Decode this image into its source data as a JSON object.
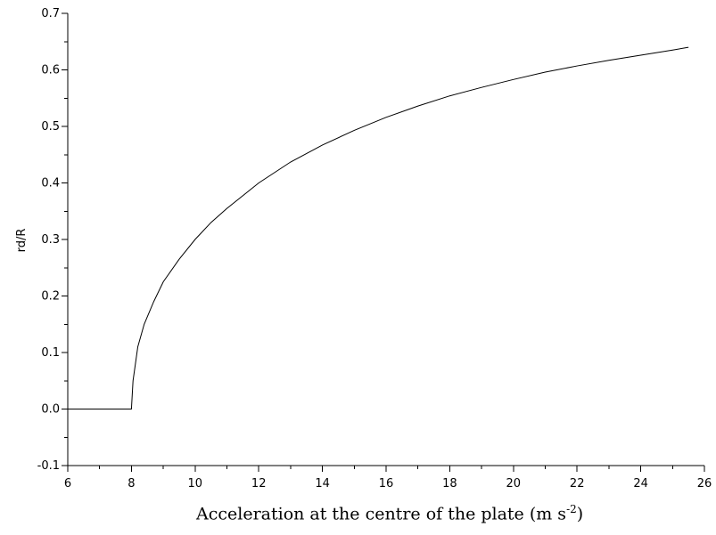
{
  "chart_data": {
    "type": "line",
    "title": "",
    "xlabel_main": "Acceleration at the centre of the plate (m s",
    "xlabel_exp": "-2",
    "xlabel_close": ")",
    "ylabel": "rd/R",
    "xlim": [
      6,
      26
    ],
    "ylim": [
      -0.1,
      0.7
    ],
    "x_ticks": [
      "6",
      "8",
      "10",
      "12",
      "14",
      "16",
      "18",
      "20",
      "22",
      "24",
      "26"
    ],
    "y_ticks": [
      "-0.1",
      "0.0",
      "0.1",
      "0.2",
      "0.3",
      "0.4",
      "0.5",
      "0.6",
      "0.7"
    ],
    "grid": false,
    "series": [
      {
        "x": [
          6,
          8,
          8.05,
          8.2,
          8.4,
          8.7,
          9,
          9.5,
          10,
          10.5,
          11,
          12,
          13,
          14,
          15,
          16,
          17,
          18,
          19,
          20,
          21,
          22,
          23,
          24,
          25,
          25.5
        ],
        "y": [
          0,
          0,
          0.05,
          0.11,
          0.15,
          0.19,
          0.225,
          0.265,
          0.3,
          0.33,
          0.355,
          0.4,
          0.437,
          0.467,
          0.493,
          0.516,
          0.536,
          0.554,
          0.569,
          0.583,
          0.596,
          0.607,
          0.617,
          0.626,
          0.635,
          0.64
        ]
      }
    ]
  }
}
